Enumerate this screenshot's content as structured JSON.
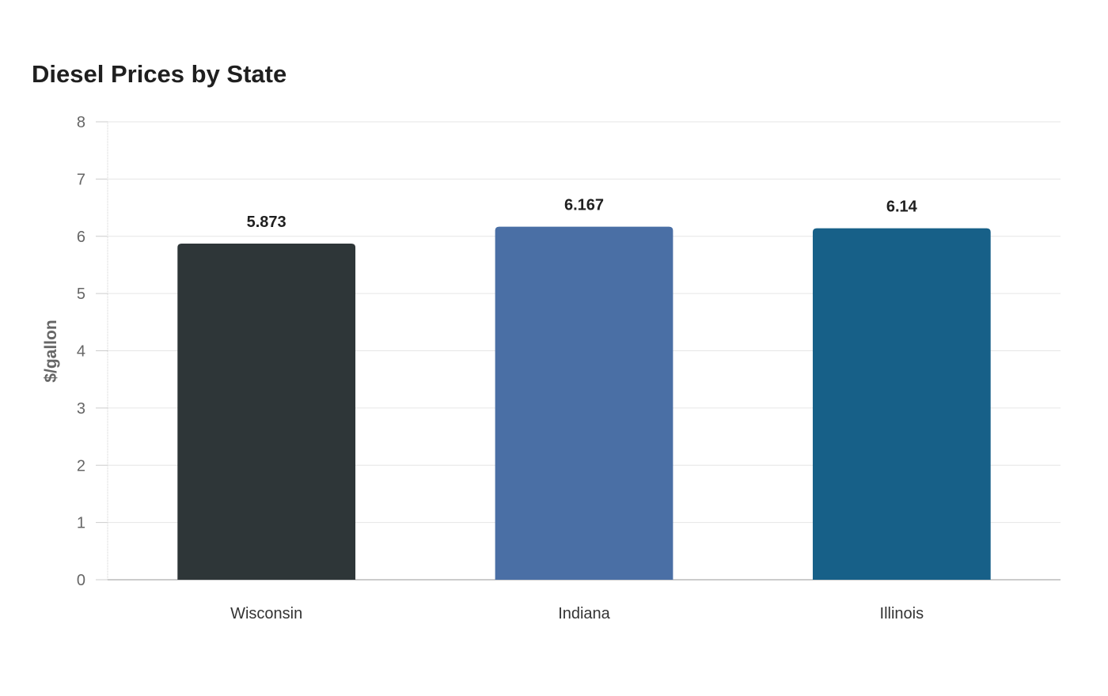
{
  "chart_data": {
    "type": "bar",
    "title": "Diesel Prices by State",
    "xlabel": "",
    "ylabel": "$/gallon",
    "categories": [
      "Wisconsin",
      "Indiana",
      "Illinois"
    ],
    "values": [
      5.873,
      6.167,
      6.14
    ],
    "value_labels": [
      "5.873",
      "6.167",
      "6.14"
    ],
    "colors": [
      "#2e3638",
      "#4a6fa5",
      "#176088"
    ],
    "ylim": [
      0,
      8
    ],
    "yticks": [
      0,
      1,
      2,
      3,
      4,
      5,
      6,
      7,
      8
    ],
    "grid": true,
    "legend": "none"
  }
}
